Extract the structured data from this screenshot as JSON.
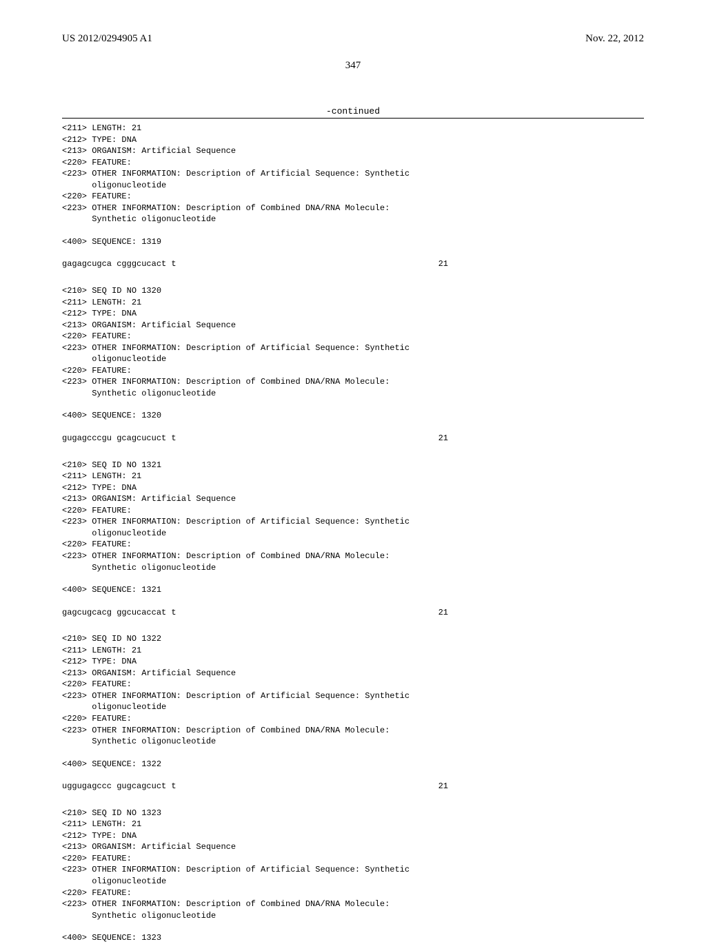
{
  "header": {
    "pub_number": "US 2012/0294905 A1",
    "pub_date": "Nov. 22, 2012"
  },
  "page_number": "347",
  "continued_label": "-continued",
  "entries": [
    {
      "pre_lines": [
        "<211> LENGTH: 21",
        "<212> TYPE: DNA",
        "<213> ORGANISM: Artificial Sequence",
        "<220> FEATURE:",
        "<223> OTHER INFORMATION: Description of Artificial Sequence: Synthetic",
        "      oligonucleotide",
        "<220> FEATURE:",
        "<223> OTHER INFORMATION: Description of Combined DNA/RNA Molecule:",
        "      Synthetic oligonucleotide"
      ],
      "seq_label": "<400> SEQUENCE: 1319",
      "sequence": "gagagcugca cgggcucact t",
      "seq_number": "21"
    },
    {
      "pre_lines": [
        "<210> SEQ ID NO 1320",
        "<211> LENGTH: 21",
        "<212> TYPE: DNA",
        "<213> ORGANISM: Artificial Sequence",
        "<220> FEATURE:",
        "<223> OTHER INFORMATION: Description of Artificial Sequence: Synthetic",
        "      oligonucleotide",
        "<220> FEATURE:",
        "<223> OTHER INFORMATION: Description of Combined DNA/RNA Molecule:",
        "      Synthetic oligonucleotide"
      ],
      "seq_label": "<400> SEQUENCE: 1320",
      "sequence": "gugagcccgu gcagcucuct t",
      "seq_number": "21"
    },
    {
      "pre_lines": [
        "<210> SEQ ID NO 1321",
        "<211> LENGTH: 21",
        "<212> TYPE: DNA",
        "<213> ORGANISM: Artificial Sequence",
        "<220> FEATURE:",
        "<223> OTHER INFORMATION: Description of Artificial Sequence: Synthetic",
        "      oligonucleotide",
        "<220> FEATURE:",
        "<223> OTHER INFORMATION: Description of Combined DNA/RNA Molecule:",
        "      Synthetic oligonucleotide"
      ],
      "seq_label": "<400> SEQUENCE: 1321",
      "sequence": "gagcugcacg ggcucaccat t",
      "seq_number": "21"
    },
    {
      "pre_lines": [
        "<210> SEQ ID NO 1322",
        "<211> LENGTH: 21",
        "<212> TYPE: DNA",
        "<213> ORGANISM: Artificial Sequence",
        "<220> FEATURE:",
        "<223> OTHER INFORMATION: Description of Artificial Sequence: Synthetic",
        "      oligonucleotide",
        "<220> FEATURE:",
        "<223> OTHER INFORMATION: Description of Combined DNA/RNA Molecule:",
        "      Synthetic oligonucleotide"
      ],
      "seq_label": "<400> SEQUENCE: 1322",
      "sequence": "uggugagccc gugcagcuct t",
      "seq_number": "21"
    },
    {
      "pre_lines": [
        "<210> SEQ ID NO 1323",
        "<211> LENGTH: 21",
        "<212> TYPE: DNA",
        "<213> ORGANISM: Artificial Sequence",
        "<220> FEATURE:",
        "<223> OTHER INFORMATION: Description of Artificial Sequence: Synthetic",
        "      oligonucleotide",
        "<220> FEATURE:",
        "<223> OTHER INFORMATION: Description of Combined DNA/RNA Molecule:",
        "      Synthetic oligonucleotide"
      ],
      "seq_label": "<400> SEQUENCE: 1323",
      "sequence": "",
      "seq_number": ""
    }
  ]
}
